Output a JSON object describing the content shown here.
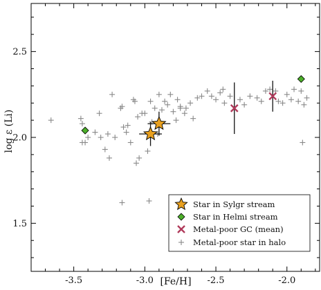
{
  "chart_data": {
    "type": "scatter",
    "xlabel": "[Fe/H]",
    "ylabel": "log ε (Li)",
    "xlim": [
      -3.8,
      -1.77
    ],
    "ylim": [
      1.22,
      2.78
    ],
    "xticks": [
      -3.5,
      -3.0,
      -2.5,
      -2.0
    ],
    "xtick_labels": [
      "-3.5",
      "-3.0",
      "-2.5",
      "-2.0"
    ],
    "yticks": [
      1.5,
      2.0,
      2.5
    ],
    "ytick_labels": [
      "1.5",
      "2.0",
      "2.5"
    ],
    "grid": false,
    "legend_position": "lower-right",
    "series": [
      {
        "name": "Star in Sylgr stream",
        "marker": "star",
        "color": "#e8a020",
        "points": [
          {
            "x": -2.96,
            "y": 2.02,
            "xerr": 0.08,
            "yerr": 0.07
          },
          {
            "x": -2.9,
            "y": 2.08,
            "xerr": 0.08,
            "yerr": 0.07
          }
        ]
      },
      {
        "name": "Star in Helmi stream",
        "marker": "diamond",
        "color": "#4caf2a",
        "points": [
          {
            "x": -3.42,
            "y": 2.04
          },
          {
            "x": -1.9,
            "y": 2.34
          }
        ]
      },
      {
        "name": "Metal-poor GC (mean)",
        "marker": "x",
        "color": "#b03a5b",
        "points": [
          {
            "x": -2.37,
            "y": 2.17,
            "yerr": 0.15
          },
          {
            "x": -2.1,
            "y": 2.24,
            "yerr": 0.09
          }
        ]
      },
      {
        "name": "Metal-poor star in halo",
        "marker": "plus",
        "color": "#888888",
        "points": [
          {
            "x": -3.66,
            "y": 2.1
          },
          {
            "x": -3.45,
            "y": 2.11
          },
          {
            "x": -3.44,
            "y": 2.08
          },
          {
            "x": -3.44,
            "y": 1.97
          },
          {
            "x": -3.42,
            "y": 1.97
          },
          {
            "x": -3.4,
            "y": 2.0
          },
          {
            "x": -3.35,
            "y": 2.03
          },
          {
            "x": -3.32,
            "y": 2.14
          },
          {
            "x": -3.31,
            "y": 2.0
          },
          {
            "x": -3.28,
            "y": 1.93
          },
          {
            "x": -3.26,
            "y": 2.02
          },
          {
            "x": -3.25,
            "y": 1.88
          },
          {
            "x": -3.23,
            "y": 2.25
          },
          {
            "x": -3.21,
            "y": 2.0
          },
          {
            "x": -3.17,
            "y": 2.17
          },
          {
            "x": -3.16,
            "y": 2.18
          },
          {
            "x": -3.15,
            "y": 2.06
          },
          {
            "x": -3.13,
            "y": 2.03
          },
          {
            "x": -3.12,
            "y": 2.07
          },
          {
            "x": -3.1,
            "y": 1.97
          },
          {
            "x": -3.08,
            "y": 2.22
          },
          {
            "x": -3.06,
            "y": 1.85
          },
          {
            "x": -3.05,
            "y": 2.12
          },
          {
            "x": -3.04,
            "y": 1.88
          },
          {
            "x": -3.02,
            "y": 2.14
          },
          {
            "x": -3.0,
            "y": 2.14
          },
          {
            "x": -2.98,
            "y": 1.92
          },
          {
            "x": -2.96,
            "y": 2.21
          },
          {
            "x": -2.95,
            "y": 2.09
          },
          {
            "x": -2.93,
            "y": 2.17
          },
          {
            "x": -2.91,
            "y": 2.02
          },
          {
            "x": -2.88,
            "y": 2.16
          },
          {
            "x": -2.86,
            "y": 2.21
          },
          {
            "x": -2.84,
            "y": 2.19
          },
          {
            "x": -2.82,
            "y": 2.25
          },
          {
            "x": -2.8,
            "y": 2.15
          },
          {
            "x": -2.78,
            "y": 2.1
          },
          {
            "x": -2.77,
            "y": 2.22
          },
          {
            "x": -2.75,
            "y": 2.18
          },
          {
            "x": -2.72,
            "y": 2.14
          },
          {
            "x": -2.71,
            "y": 2.17
          },
          {
            "x": -2.68,
            "y": 2.2
          },
          {
            "x": -2.66,
            "y": 2.11
          },
          {
            "x": -2.63,
            "y": 2.23
          },
          {
            "x": -2.6,
            "y": 2.24
          },
          {
            "x": -2.56,
            "y": 2.27
          },
          {
            "x": -2.53,
            "y": 2.24
          },
          {
            "x": -2.5,
            "y": 2.22
          },
          {
            "x": -2.47,
            "y": 2.26
          },
          {
            "x": -2.44,
            "y": 2.2
          },
          {
            "x": -2.4,
            "y": 2.24
          },
          {
            "x": -2.33,
            "y": 2.22
          },
          {
            "x": -2.3,
            "y": 2.19
          },
          {
            "x": -2.26,
            "y": 2.24
          },
          {
            "x": -2.21,
            "y": 2.23
          },
          {
            "x": -2.18,
            "y": 2.21
          },
          {
            "x": -2.15,
            "y": 2.27
          },
          {
            "x": -2.12,
            "y": 2.28
          },
          {
            "x": -2.08,
            "y": 2.27
          },
          {
            "x": -2.06,
            "y": 2.21
          },
          {
            "x": -2.03,
            "y": 2.2
          },
          {
            "x": -2.0,
            "y": 2.25
          },
          {
            "x": -1.97,
            "y": 2.22
          },
          {
            "x": -1.95,
            "y": 2.28
          },
          {
            "x": -1.92,
            "y": 2.21
          },
          {
            "x": -1.9,
            "y": 2.27
          },
          {
            "x": -1.88,
            "y": 2.19
          },
          {
            "x": -1.86,
            "y": 2.23
          },
          {
            "x": -1.89,
            "y": 1.97
          },
          {
            "x": -3.16,
            "y": 1.62
          },
          {
            "x": -2.97,
            "y": 1.63
          },
          {
            "x": -2.9,
            "y": 2.25
          },
          {
            "x": -2.75,
            "y": 2.17
          },
          {
            "x": -3.07,
            "y": 2.21
          },
          {
            "x": -2.45,
            "y": 2.28
          }
        ]
      }
    ]
  }
}
